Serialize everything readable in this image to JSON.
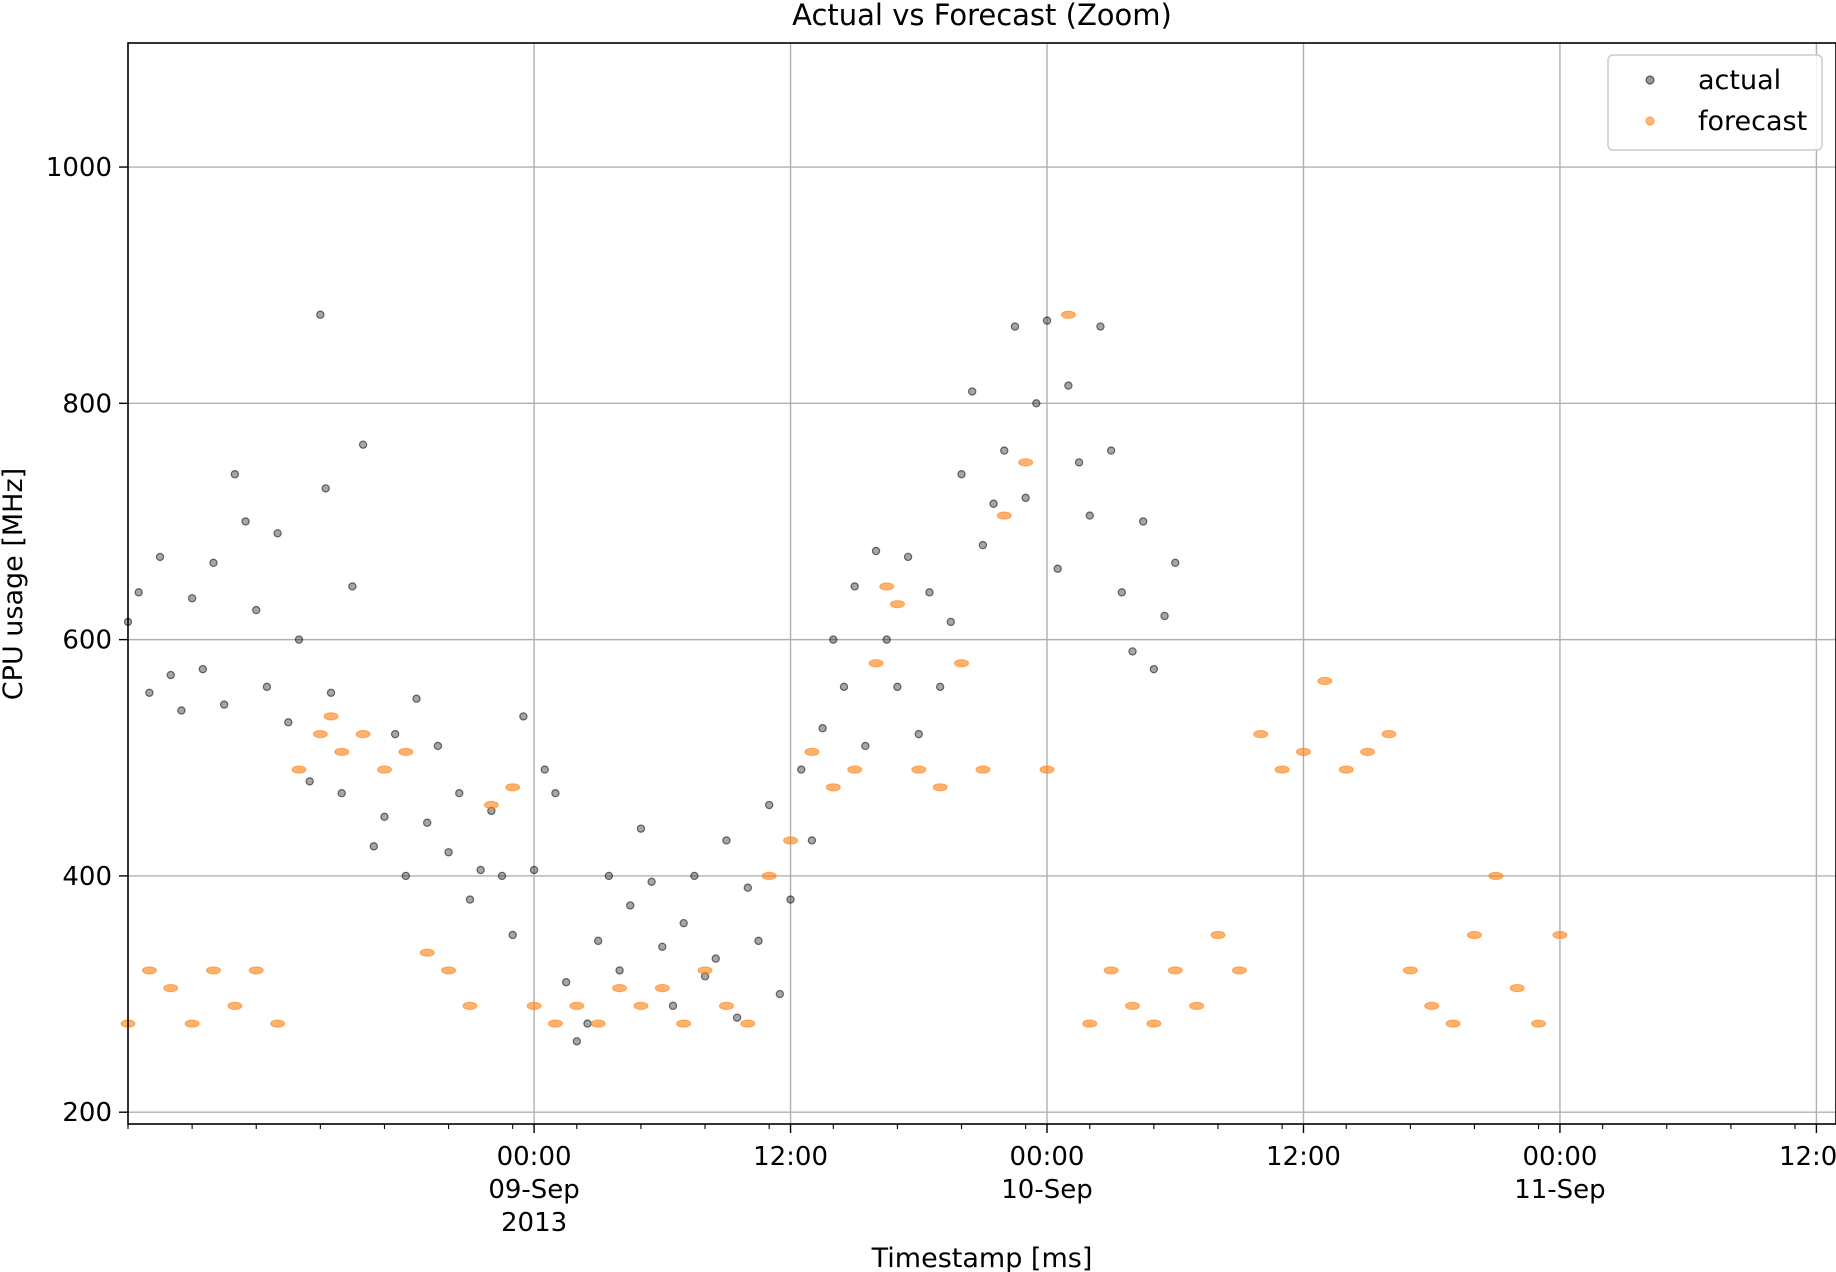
{
  "chart_data": {
    "type": "scatter",
    "title": "Actual vs Forecast (Zoom)",
    "xlabel": "Timestamp [ms]",
    "ylabel": "CPU usage [MHz]",
    "xlim": [
      "2013-09-08T05:00",
      "2013-09-11T12:55"
    ],
    "ylim": [
      190,
      1105
    ],
    "grid": true,
    "legend_position": "top-right",
    "x_ticks": [
      {
        "x": "2013-09-09T00:00",
        "lines": [
          "00:00",
          "09-Sep",
          "2013"
        ]
      },
      {
        "x": "2013-09-09T12:00",
        "lines": [
          "12:00"
        ]
      },
      {
        "x": "2013-09-10T00:00",
        "lines": [
          "00:00",
          "10-Sep"
        ]
      },
      {
        "x": "2013-09-10T12:00",
        "lines": [
          "12:00"
        ]
      },
      {
        "x": "2013-09-11T00:00",
        "lines": [
          "00:00",
          "11-Sep"
        ]
      },
      {
        "x": "2013-09-11T12:00",
        "lines": [
          "12:00"
        ]
      }
    ],
    "y_ticks": [
      200,
      400,
      600,
      800,
      1000
    ],
    "series": [
      {
        "name": "actual",
        "color": "#000000",
        "points": [
          [
            "2013-09-08T05:00",
            615
          ],
          [
            "2013-09-08T05:30",
            640
          ],
          [
            "2013-09-08T06:00",
            555
          ],
          [
            "2013-09-08T06:30",
            670
          ],
          [
            "2013-09-08T07:00",
            570
          ],
          [
            "2013-09-08T07:30",
            540
          ],
          [
            "2013-09-08T08:00",
            635
          ],
          [
            "2013-09-08T08:30",
            575
          ],
          [
            "2013-09-08T09:00",
            665
          ],
          [
            "2013-09-08T09:30",
            545
          ],
          [
            "2013-09-08T10:00",
            740
          ],
          [
            "2013-09-08T10:30",
            700
          ],
          [
            "2013-09-08T11:00",
            625
          ],
          [
            "2013-09-08T11:30",
            560
          ],
          [
            "2013-09-08T12:00",
            690
          ],
          [
            "2013-09-08T12:30",
            530
          ],
          [
            "2013-09-08T13:00",
            600
          ],
          [
            "2013-09-08T13:30",
            480
          ],
          [
            "2013-09-08T14:00",
            875
          ],
          [
            "2013-09-08T14:15",
            728
          ],
          [
            "2013-09-08T14:30",
            555
          ],
          [
            "2013-09-08T15:00",
            470
          ],
          [
            "2013-09-08T15:30",
            645
          ],
          [
            "2013-09-08T16:00",
            765
          ],
          [
            "2013-09-08T16:30",
            425
          ],
          [
            "2013-09-08T17:00",
            450
          ],
          [
            "2013-09-08T17:30",
            520
          ],
          [
            "2013-09-08T18:00",
            400
          ],
          [
            "2013-09-08T18:30",
            550
          ],
          [
            "2013-09-08T19:00",
            445
          ],
          [
            "2013-09-08T19:30",
            510
          ],
          [
            "2013-09-08T20:00",
            420
          ],
          [
            "2013-09-08T20:30",
            470
          ],
          [
            "2013-09-08T21:00",
            380
          ],
          [
            "2013-09-08T21:30",
            405
          ],
          [
            "2013-09-08T22:00",
            455
          ],
          [
            "2013-09-08T22:30",
            400
          ],
          [
            "2013-09-08T23:00",
            350
          ],
          [
            "2013-09-08T23:30",
            535
          ],
          [
            "2013-09-09T00:00",
            405
          ],
          [
            "2013-09-09T00:30",
            490
          ],
          [
            "2013-09-09T01:00",
            470
          ],
          [
            "2013-09-09T01:30",
            310
          ],
          [
            "2013-09-09T02:00",
            260
          ],
          [
            "2013-09-09T02:30",
            275
          ],
          [
            "2013-09-09T03:00",
            345
          ],
          [
            "2013-09-09T03:30",
            400
          ],
          [
            "2013-09-09T04:00",
            320
          ],
          [
            "2013-09-09T04:30",
            375
          ],
          [
            "2013-09-09T05:00",
            440
          ],
          [
            "2013-09-09T05:30",
            395
          ],
          [
            "2013-09-09T06:00",
            340
          ],
          [
            "2013-09-09T06:30",
            290
          ],
          [
            "2013-09-09T07:00",
            360
          ],
          [
            "2013-09-09T07:30",
            400
          ],
          [
            "2013-09-09T08:00",
            315
          ],
          [
            "2013-09-09T08:30",
            330
          ],
          [
            "2013-09-09T09:00",
            430
          ],
          [
            "2013-09-09T09:30",
            280
          ],
          [
            "2013-09-09T10:00",
            390
          ],
          [
            "2013-09-09T10:30",
            345
          ],
          [
            "2013-09-09T11:00",
            460
          ],
          [
            "2013-09-09T11:30",
            300
          ],
          [
            "2013-09-09T12:00",
            380
          ],
          [
            "2013-09-09T12:30",
            490
          ],
          [
            "2013-09-09T13:00",
            430
          ],
          [
            "2013-09-09T13:30",
            525
          ],
          [
            "2013-09-09T14:00",
            600
          ],
          [
            "2013-09-09T14:30",
            560
          ],
          [
            "2013-09-09T15:00",
            645
          ],
          [
            "2013-09-09T15:30",
            510
          ],
          [
            "2013-09-09T16:00",
            675
          ],
          [
            "2013-09-09T16:30",
            600
          ],
          [
            "2013-09-09T17:00",
            560
          ],
          [
            "2013-09-09T17:30",
            670
          ],
          [
            "2013-09-09T18:00",
            520
          ],
          [
            "2013-09-09T18:30",
            640
          ],
          [
            "2013-09-09T19:00",
            560
          ],
          [
            "2013-09-09T19:30",
            615
          ],
          [
            "2013-09-09T20:00",
            740
          ],
          [
            "2013-09-09T20:30",
            810
          ],
          [
            "2013-09-09T21:00",
            680
          ],
          [
            "2013-09-09T21:30",
            715
          ],
          [
            "2013-09-09T22:00",
            760
          ],
          [
            "2013-09-09T22:30",
            865
          ],
          [
            "2013-09-09T23:00",
            720
          ],
          [
            "2013-09-09T23:30",
            800
          ],
          [
            "2013-09-10T00:00",
            870
          ],
          [
            "2013-09-10T00:30",
            660
          ],
          [
            "2013-09-10T01:00",
            815
          ],
          [
            "2013-09-10T01:30",
            750
          ],
          [
            "2013-09-10T02:00",
            705
          ],
          [
            "2013-09-10T02:30",
            865
          ],
          [
            "2013-09-10T03:00",
            760
          ],
          [
            "2013-09-10T03:30",
            640
          ],
          [
            "2013-09-10T04:00",
            590
          ],
          [
            "2013-09-10T04:30",
            700
          ],
          [
            "2013-09-10T05:00",
            575
          ],
          [
            "2013-09-10T05:30",
            620
          ],
          [
            "2013-09-10T06:00",
            665
          ]
        ]
      },
      {
        "name": "forecast",
        "color": "#ff7f0e",
        "points": [
          [
            "2013-09-08T05:00",
            275
          ],
          [
            "2013-09-08T06:00",
            320
          ],
          [
            "2013-09-08T07:00",
            305
          ],
          [
            "2013-09-08T08:00",
            275
          ],
          [
            "2013-09-08T09:00",
            320
          ],
          [
            "2013-09-08T10:00",
            290
          ],
          [
            "2013-09-08T11:00",
            320
          ],
          [
            "2013-09-08T12:00",
            275
          ],
          [
            "2013-09-08T13:00",
            490
          ],
          [
            "2013-09-08T14:00",
            520
          ],
          [
            "2013-09-08T14:30",
            535
          ],
          [
            "2013-09-08T15:00",
            505
          ],
          [
            "2013-09-08T16:00",
            520
          ],
          [
            "2013-09-08T17:00",
            490
          ],
          [
            "2013-09-08T18:00",
            505
          ],
          [
            "2013-09-08T19:00",
            335
          ],
          [
            "2013-09-08T20:00",
            320
          ],
          [
            "2013-09-08T21:00",
            290
          ],
          [
            "2013-09-08T22:00",
            460
          ],
          [
            "2013-09-08T23:00",
            475
          ],
          [
            "2013-09-09T00:00",
            290
          ],
          [
            "2013-09-09T01:00",
            275
          ],
          [
            "2013-09-09T02:00",
            290
          ],
          [
            "2013-09-09T03:00",
            275
          ],
          [
            "2013-09-09T04:00",
            305
          ],
          [
            "2013-09-09T05:00",
            290
          ],
          [
            "2013-09-09T06:00",
            305
          ],
          [
            "2013-09-09T07:00",
            275
          ],
          [
            "2013-09-09T08:00",
            320
          ],
          [
            "2013-09-09T09:00",
            290
          ],
          [
            "2013-09-09T10:00",
            275
          ],
          [
            "2013-09-09T11:00",
            400
          ],
          [
            "2013-09-09T12:00",
            430
          ],
          [
            "2013-09-09T13:00",
            505
          ],
          [
            "2013-09-09T14:00",
            475
          ],
          [
            "2013-09-09T15:00",
            490
          ],
          [
            "2013-09-09T16:00",
            580
          ],
          [
            "2013-09-09T16:30",
            645
          ],
          [
            "2013-09-09T17:00",
            630
          ],
          [
            "2013-09-09T18:00",
            490
          ],
          [
            "2013-09-09T19:00",
            475
          ],
          [
            "2013-09-09T20:00",
            580
          ],
          [
            "2013-09-09T21:00",
            490
          ],
          [
            "2013-09-09T22:00",
            705
          ],
          [
            "2013-09-09T23:00",
            750
          ],
          [
            "2013-09-10T00:00",
            490
          ],
          [
            "2013-09-10T01:00",
            875
          ],
          [
            "2013-09-10T02:00",
            275
          ],
          [
            "2013-09-10T03:00",
            320
          ],
          [
            "2013-09-10T04:00",
            290
          ],
          [
            "2013-09-10T05:00",
            275
          ],
          [
            "2013-09-10T06:00",
            320
          ],
          [
            "2013-09-10T07:00",
            290
          ],
          [
            "2013-09-10T08:00",
            350
          ],
          [
            "2013-09-10T09:00",
            320
          ],
          [
            "2013-09-10T10:00",
            520
          ],
          [
            "2013-09-10T11:00",
            490
          ],
          [
            "2013-09-10T12:00",
            505
          ],
          [
            "2013-09-10T13:00",
            565
          ],
          [
            "2013-09-10T14:00",
            490
          ],
          [
            "2013-09-10T15:00",
            505
          ],
          [
            "2013-09-10T16:00",
            520
          ],
          [
            "2013-09-10T17:00",
            320
          ],
          [
            "2013-09-10T18:00",
            290
          ],
          [
            "2013-09-10T19:00",
            275
          ],
          [
            "2013-09-10T20:00",
            350
          ],
          [
            "2013-09-10T21:00",
            400
          ],
          [
            "2013-09-10T22:00",
            305
          ],
          [
            "2013-09-10T23:00",
            275
          ],
          [
            "2013-09-11T00:00",
            350
          ]
        ]
      }
    ]
  }
}
